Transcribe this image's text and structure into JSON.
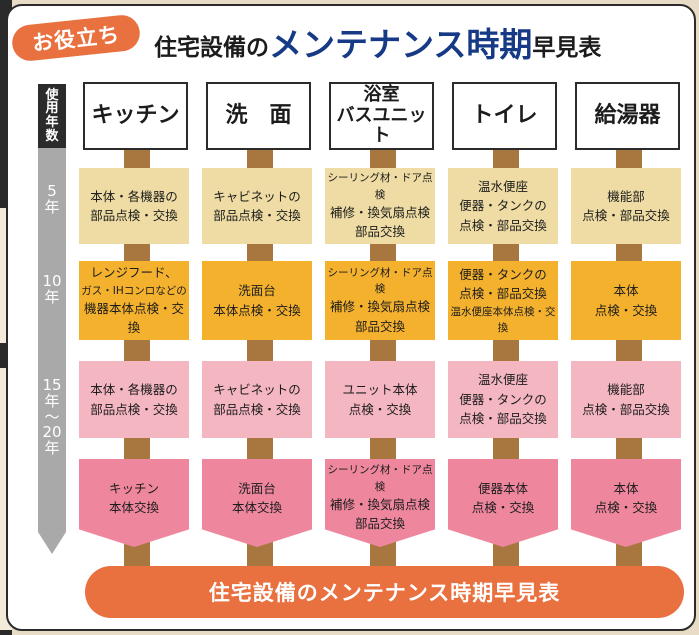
{
  "badge": "お役立ち",
  "title": {
    "pre": "住宅設備の",
    "main": "メンテナンス時期",
    "post": "早見表"
  },
  "axis": {
    "header": [
      "使",
      "用",
      "年",
      "数"
    ],
    "labels": [
      [
        "5",
        "年"
      ],
      [
        "10",
        "年"
      ],
      [
        "15",
        "年",
        "〜",
        "20",
        "年"
      ]
    ]
  },
  "columns": [
    {
      "header": [
        "キッチン"
      ],
      "cells": [
        [
          "本体・各機器の",
          "部品点検・交換"
        ],
        [
          "レンジフード、",
          "ガス・IHコンロなどの",
          "機器本体点検・交換"
        ],
        [
          "本体・各機器の",
          "部品点検・交換"
        ],
        [
          "キッチン",
          "本体交換"
        ]
      ]
    },
    {
      "header": [
        "洗　面"
      ],
      "cells": [
        [
          "キャビネットの",
          "部品点検・交換"
        ],
        [
          "洗面台",
          "本体点検・交換"
        ],
        [
          "キャビネットの",
          "部品点検・交換"
        ],
        [
          "洗面台",
          "本体交換"
        ]
      ]
    },
    {
      "header": [
        "浴室",
        "バスユニット"
      ],
      "cells": [
        [
          "シーリング材・ドア点検",
          "補修・換気扇点検",
          "部品交換"
        ],
        [
          "シーリング材・ドア点検",
          "補修・換気扇点検",
          "部品交換"
        ],
        [
          "ユニット本体",
          "点検・交換"
        ],
        [
          "シーリング材・ドア点検",
          "補修・換気扇点検",
          "部品交換"
        ]
      ]
    },
    {
      "header": [
        "トイレ"
      ],
      "cells": [
        [
          "温水便座",
          "便器・タンクの",
          "点検・部品交換"
        ],
        [
          "便器・タンクの",
          "点検・部品交換",
          "温水便座本体点検・交換"
        ],
        [
          "温水便座",
          "便器・タンクの",
          "点検・部品交換"
        ],
        [
          "便器本体",
          "点検・交換"
        ]
      ]
    },
    {
      "header": [
        "給湯器"
      ],
      "cells": [
        [
          "機能部",
          "点検・部品交換"
        ],
        [
          "本体",
          "点検・交換"
        ],
        [
          "機能部",
          "点検・部品交換"
        ],
        [
          "本体",
          "点検・交換"
        ]
      ]
    }
  ],
  "footer": "住宅設備のメンテナンス時期早見表",
  "colors": {
    "accent": "#e9703f",
    "title_blue": "#173a86",
    "row5": "#eedca4",
    "row10": "#f4b12e",
    "row15": "#f4b6c0",
    "row20": "#ee879d",
    "stem": "#a8763f"
  }
}
